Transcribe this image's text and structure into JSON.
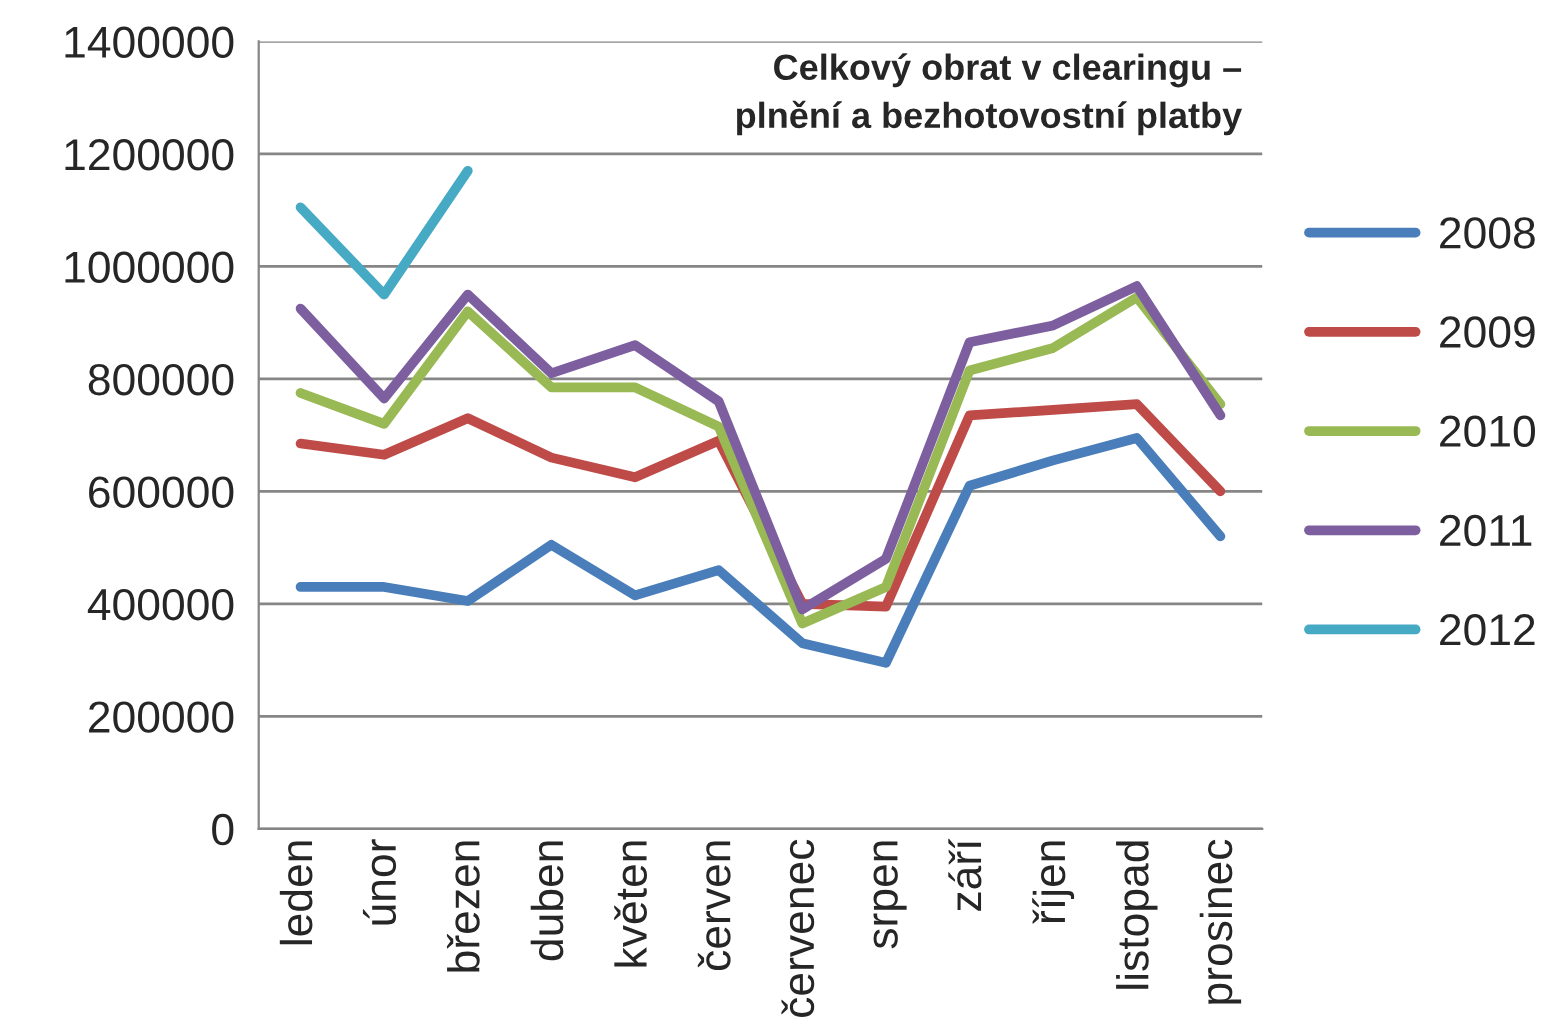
{
  "chart_data": {
    "type": "line",
    "title": "Celkový obrat v clearingu –\nplnění a bezhotovostní platby",
    "categories": [
      "leden",
      "únor",
      "březen",
      "duben",
      "květen",
      "červen",
      "červenec",
      "srpen",
      "září",
      "říjen",
      "listopad",
      "prosinec"
    ],
    "series": [
      {
        "name": "2008",
        "color": "#4a7ebb",
        "values": [
          430000,
          430000,
          405000,
          505000,
          415000,
          460000,
          330000,
          295000,
          610000,
          655000,
          695000,
          520000
        ]
      },
      {
        "name": "2009",
        "color": "#be4b48",
        "values": [
          685000,
          665000,
          730000,
          660000,
          625000,
          690000,
          400000,
          395000,
          735000,
          745000,
          755000,
          600000
        ]
      },
      {
        "name": "2010",
        "color": "#98b954",
        "values": [
          775000,
          720000,
          920000,
          785000,
          785000,
          715000,
          365000,
          430000,
          815000,
          855000,
          945000,
          755000
        ]
      },
      {
        "name": "2011",
        "color": "#7d5fa0",
        "values": [
          925000,
          765000,
          950000,
          810000,
          860000,
          760000,
          390000,
          480000,
          865000,
          895000,
          965000,
          735000
        ]
      },
      {
        "name": "2012",
        "color": "#46aac5",
        "values": [
          1105000,
          950000,
          1170000,
          null,
          null,
          null,
          null,
          null,
          null,
          null,
          null,
          null
        ]
      }
    ],
    "ylim": [
      0,
      1400000
    ],
    "yticks": [
      0,
      200000,
      400000,
      600000,
      800000,
      1000000,
      1200000,
      1400000
    ],
    "grid": "y",
    "legend": "right",
    "marker": "none",
    "line_style": "solid"
  }
}
